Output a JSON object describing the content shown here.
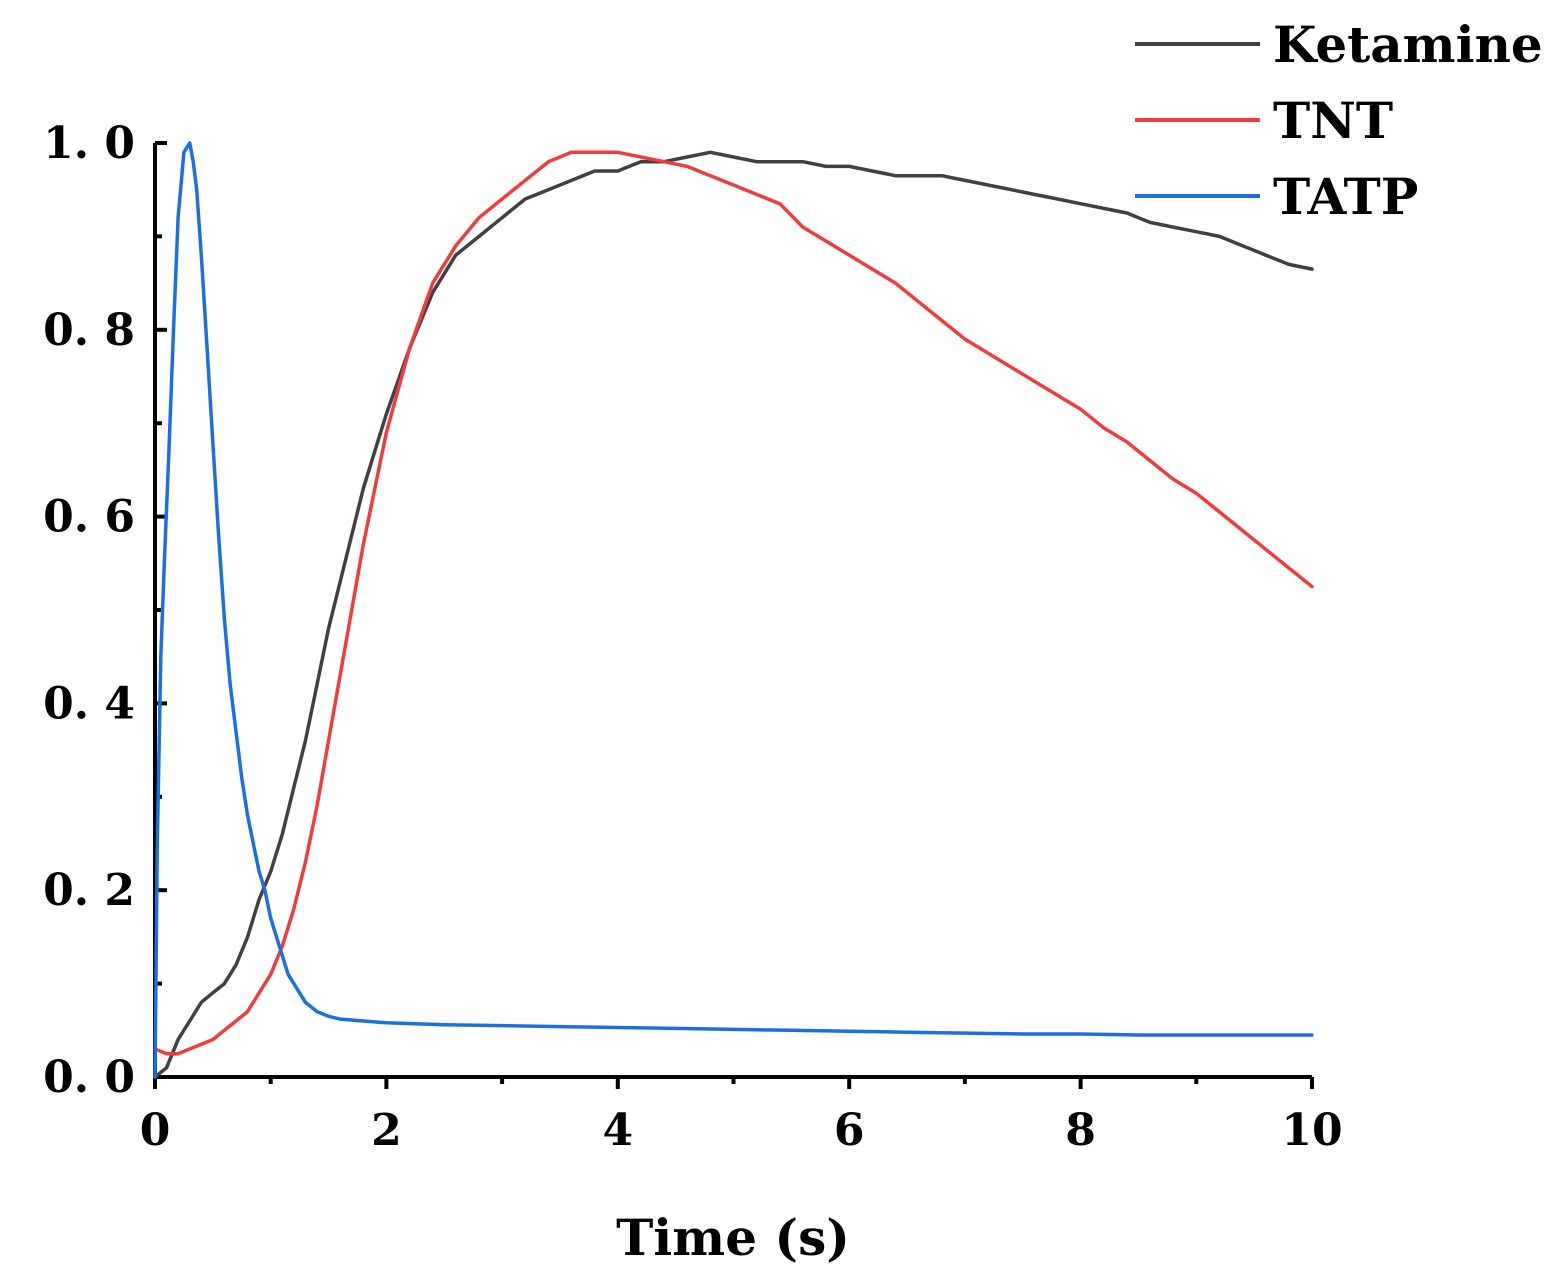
{
  "chart_data": {
    "type": "line",
    "title": "",
    "xlabel": "Time (s)",
    "ylabel": "",
    "xlim": [
      0,
      10
    ],
    "ylim": [
      0,
      1.0
    ],
    "x_ticks": [
      0,
      2,
      4,
      6,
      8,
      10
    ],
    "x_tick_labels": [
      "0",
      "2",
      "4",
      "6",
      "8",
      "10"
    ],
    "y_ticks": [
      0,
      0.2,
      0.4,
      0.6,
      0.8,
      1.0
    ],
    "y_tick_labels": [
      "0. 0",
      "0. 2",
      "0. 4",
      "0. 6",
      "0. 8",
      "1. 0"
    ],
    "grid": false,
    "legend_position": "top-right",
    "series": [
      {
        "name": "Ketamine",
        "color": "#404040",
        "x": [
          0,
          0.1,
          0.2,
          0.3,
          0.4,
          0.5,
          0.6,
          0.7,
          0.8,
          0.9,
          1.0,
          1.1,
          1.2,
          1.3,
          1.4,
          1.5,
          1.6,
          1.7,
          1.8,
          1.9,
          2.0,
          2.2,
          2.4,
          2.6,
          2.8,
          3.0,
          3.2,
          3.4,
          3.6,
          3.8,
          4.0,
          4.2,
          4.4,
          4.6,
          4.8,
          5.0,
          5.2,
          5.4,
          5.6,
          5.8,
          6.0,
          6.2,
          6.4,
          6.6,
          6.8,
          7.0,
          7.2,
          7.4,
          7.6,
          7.8,
          8.0,
          8.2,
          8.4,
          8.6,
          8.8,
          9.0,
          9.2,
          9.4,
          9.6,
          9.8,
          10.0
        ],
        "values": [
          0.0,
          0.01,
          0.04,
          0.06,
          0.08,
          0.09,
          0.1,
          0.12,
          0.15,
          0.19,
          0.22,
          0.26,
          0.31,
          0.36,
          0.42,
          0.48,
          0.53,
          0.58,
          0.63,
          0.67,
          0.71,
          0.78,
          0.84,
          0.88,
          0.9,
          0.92,
          0.94,
          0.95,
          0.96,
          0.97,
          0.97,
          0.98,
          0.98,
          0.985,
          0.99,
          0.985,
          0.98,
          0.98,
          0.98,
          0.975,
          0.975,
          0.97,
          0.965,
          0.965,
          0.965,
          0.96,
          0.955,
          0.95,
          0.945,
          0.94,
          0.935,
          0.93,
          0.925,
          0.915,
          0.91,
          0.905,
          0.9,
          0.89,
          0.88,
          0.87,
          0.865
        ]
      },
      {
        "name": "TNT",
        "color": "#f03c3c",
        "x": [
          0,
          0.1,
          0.2,
          0.3,
          0.4,
          0.5,
          0.6,
          0.7,
          0.8,
          0.9,
          1.0,
          1.1,
          1.2,
          1.3,
          1.4,
          1.5,
          1.6,
          1.7,
          1.8,
          1.9,
          2.0,
          2.2,
          2.4,
          2.6,
          2.8,
          3.0,
          3.2,
          3.4,
          3.6,
          3.8,
          4.0,
          4.2,
          4.4,
          4.6,
          4.8,
          5.0,
          5.2,
          5.4,
          5.6,
          5.8,
          6.0,
          6.2,
          6.4,
          6.6,
          6.8,
          7.0,
          7.2,
          7.4,
          7.6,
          7.8,
          8.0,
          8.2,
          8.4,
          8.6,
          8.8,
          9.0,
          9.2,
          9.4,
          9.6,
          9.8,
          10.0
        ],
        "values": [
          0.03,
          0.025,
          0.025,
          0.03,
          0.035,
          0.04,
          0.05,
          0.06,
          0.07,
          0.09,
          0.11,
          0.14,
          0.18,
          0.23,
          0.29,
          0.36,
          0.43,
          0.5,
          0.57,
          0.63,
          0.69,
          0.78,
          0.85,
          0.89,
          0.92,
          0.94,
          0.96,
          0.98,
          0.99,
          0.99,
          0.99,
          0.985,
          0.98,
          0.975,
          0.965,
          0.955,
          0.945,
          0.935,
          0.91,
          0.895,
          0.88,
          0.865,
          0.85,
          0.83,
          0.81,
          0.79,
          0.775,
          0.76,
          0.745,
          0.73,
          0.715,
          0.695,
          0.68,
          0.66,
          0.64,
          0.625,
          0.605,
          0.585,
          0.565,
          0.545,
          0.525
        ]
      },
      {
        "name": "TATP",
        "color": "#1c6fe0",
        "x": [
          0,
          0.02,
          0.05,
          0.08,
          0.12,
          0.16,
          0.2,
          0.25,
          0.3,
          0.33,
          0.36,
          0.4,
          0.45,
          0.5,
          0.55,
          0.6,
          0.65,
          0.7,
          0.75,
          0.8,
          0.85,
          0.9,
          0.95,
          1.0,
          1.05,
          1.1,
          1.15,
          1.2,
          1.25,
          1.3,
          1.35,
          1.4,
          1.5,
          1.6,
          1.8,
          2.0,
          2.5,
          3.0,
          3.5,
          4.0,
          4.5,
          5.0,
          5.5,
          6.0,
          6.5,
          7.0,
          7.5,
          8.0,
          8.5,
          9.0,
          9.5,
          10.0
        ],
        "values": [
          0.0,
          0.25,
          0.45,
          0.55,
          0.67,
          0.8,
          0.92,
          0.99,
          1.0,
          0.98,
          0.95,
          0.88,
          0.78,
          0.68,
          0.58,
          0.49,
          0.42,
          0.37,
          0.32,
          0.28,
          0.25,
          0.22,
          0.2,
          0.17,
          0.15,
          0.13,
          0.11,
          0.1,
          0.09,
          0.08,
          0.075,
          0.07,
          0.065,
          0.062,
          0.06,
          0.058,
          0.056,
          0.055,
          0.054,
          0.053,
          0.052,
          0.051,
          0.05,
          0.049,
          0.048,
          0.047,
          0.046,
          0.046,
          0.045,
          0.045,
          0.045,
          0.045
        ]
      }
    ]
  }
}
